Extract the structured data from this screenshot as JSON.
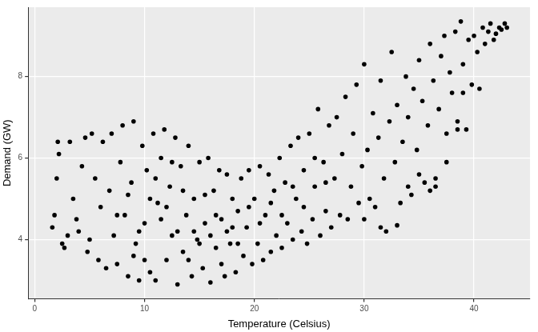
{
  "chart_data": {
    "type": "scatter",
    "x_label": "Temperature (Celsius)",
    "y_label": "Demand (GW)",
    "color": "#000000",
    "marker": "circle",
    "grid": true,
    "xlim": [
      -0.6,
      45.1
    ],
    "xticks": [
      0,
      10,
      20,
      30,
      40
    ],
    "ylim": [
      2.55,
      9.7
    ],
    "yticks": [
      4,
      6,
      8
    ],
    "x": [
      1.6,
      1.8,
      2.0,
      2.1,
      2.2,
      2.5,
      2.7,
      3.0,
      3.2,
      3.5,
      3.8,
      4.0,
      4.3,
      4.6,
      4.8,
      5.0,
      5.2,
      5.5,
      5.8,
      6.0,
      6.2,
      6.5,
      6.8,
      7.0,
      7.2,
      7.5,
      7.8,
      8.0,
      8.2,
      8.5,
      8.8,
      9.0,
      9.2,
      9.5,
      9.8,
      10.0,
      10.2,
      10.5,
      10.8,
      11.0,
      11.2,
      11.5,
      11.8,
      12.0,
      12.3,
      12.5,
      12.8,
      13.0,
      13.3,
      13.5,
      13.8,
      14.0,
      14.3,
      14.5,
      14.8,
      15.0,
      15.3,
      15.5,
      15.8,
      16.0,
      16.3,
      16.5,
      16.8,
      17.0,
      17.3,
      17.5,
      17.8,
      18.0,
      18.3,
      18.5,
      18.8,
      19.0,
      19.3,
      19.5,
      19.8,
      20.0,
      20.3,
      20.5,
      20.8,
      21.0,
      21.3,
      21.5,
      21.8,
      22.0,
      22.3,
      22.5,
      22.8,
      23.0,
      23.3,
      23.5,
      23.8,
      24.0,
      24.3,
      24.5,
      24.8,
      25.0,
      25.3,
      25.5,
      25.8,
      26.0,
      26.3,
      26.5,
      26.8,
      27.0,
      27.3,
      27.5,
      27.8,
      28.0,
      28.3,
      28.5,
      28.8,
      29.0,
      29.3,
      29.5,
      29.8,
      30.0,
      30.3,
      30.5,
      30.8,
      31.0,
      31.3,
      31.5,
      31.8,
      32.0,
      32.3,
      32.5,
      32.8,
      33.0,
      33.3,
      33.5,
      33.8,
      34.0,
      34.3,
      34.5,
      34.8,
      35.0,
      35.3,
      35.5,
      35.8,
      36.0,
      36.3,
      36.5,
      36.8,
      37.0,
      37.3,
      37.5,
      37.8,
      38.0,
      38.3,
      38.5,
      38.8,
      39.0,
      39.3,
      39.5,
      39.8,
      40.0,
      40.3,
      40.5,
      40.8,
      41.0,
      41.3,
      41.5,
      41.8,
      42.0,
      42.3,
      42.5,
      42.8,
      43.0,
      7.5,
      8.5,
      9.5,
      10.5,
      11.5,
      12.5,
      13.5,
      14.5,
      15.5,
      16.5,
      17.5,
      18.5,
      19.5,
      20.5,
      21.5,
      22.5,
      23.5,
      24.5,
      25.5,
      26.5,
      9.0,
      10.0,
      11.0,
      12.0,
      13.0,
      14.0,
      15.0,
      16.0,
      17.0,
      18.0,
      30.0,
      31.5,
      33.0,
      34.0,
      35.0,
      36.0,
      37.5,
      38.5,
      36.5,
      39.0
    ],
    "values": [
      4.3,
      4.6,
      5.5,
      6.4,
      6.1,
      3.9,
      3.8,
      4.1,
      6.4,
      5.0,
      4.5,
      4.2,
      5.8,
      6.5,
      3.7,
      4.0,
      6.6,
      5.5,
      3.5,
      4.8,
      6.4,
      3.3,
      5.2,
      6.6,
      4.1,
      3.4,
      5.9,
      6.8,
      4.6,
      3.1,
      5.4,
      6.9,
      3.9,
      3.0,
      6.3,
      4.4,
      5.7,
      3.2,
      6.6,
      3.0,
      4.9,
      6.0,
      6.7,
      3.5,
      5.3,
      4.1,
      6.5,
      2.9,
      5.8,
      3.7,
      4.6,
      6.3,
      3.1,
      5.0,
      4.0,
      5.9,
      3.3,
      4.4,
      6.0,
      2.95,
      5.2,
      3.8,
      5.7,
      4.5,
      3.1,
      5.6,
      3.9,
      5.0,
      3.2,
      4.7,
      5.5,
      3.6,
      4.3,
      5.7,
      3.4,
      5.0,
      3.9,
      5.8,
      3.5,
      4.6,
      5.6,
      3.7,
      5.2,
      4.1,
      6.0,
      3.8,
      5.4,
      4.4,
      6.3,
      4.0,
      5.0,
      6.5,
      4.2,
      5.7,
      3.9,
      6.6,
      4.5,
      5.3,
      7.2,
      4.1,
      5.9,
      4.7,
      6.8,
      4.3,
      5.5,
      7.0,
      4.6,
      6.1,
      7.5,
      4.5,
      5.3,
      6.6,
      7.8,
      4.9,
      5.8,
      8.3,
      6.2,
      5.0,
      7.1,
      4.8,
      6.5,
      7.9,
      5.5,
      4.2,
      6.9,
      8.6,
      5.9,
      7.3,
      4.9,
      6.4,
      8.0,
      7.0,
      5.1,
      7.7,
      6.2,
      8.4,
      7.4,
      5.4,
      6.8,
      8.8,
      7.9,
      5.5,
      7.2,
      8.5,
      9.0,
      6.6,
      8.1,
      7.6,
      9.1,
      6.9,
      9.35,
      8.3,
      6.7,
      8.9,
      7.8,
      9.0,
      8.6,
      7.7,
      9.2,
      8.8,
      9.1,
      9.3,
      8.9,
      9.05,
      9.2,
      9.15,
      9.3,
      9.2,
      4.6,
      5.1,
      4.2,
      5.0,
      4.5,
      5.9,
      5.2,
      4.2,
      5.1,
      4.6,
      4.2,
      3.9,
      4.8,
      4.4,
      4.9,
      4.6,
      5.3,
      4.8,
      6.0,
      5.4,
      3.6,
      3.5,
      5.5,
      4.8,
      4.2,
      3.5,
      3.9,
      4.1,
      3.4,
      4.3,
      4.5,
      4.3,
      4.35,
      5.3,
      5.6,
      5.2,
      5.9,
      6.7,
      5.3,
      7.6
    ]
  }
}
